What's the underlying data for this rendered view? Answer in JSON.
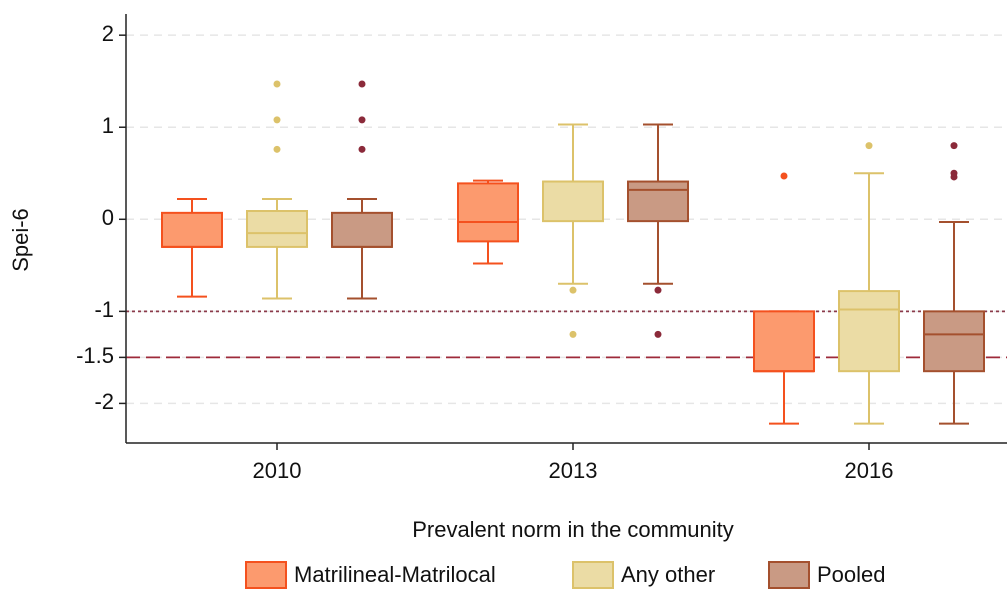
{
  "chart_data": {
    "type": "box",
    "y_label": "Spei-6",
    "legend_title": "Prevalent norm in the community",
    "categories": [
      "2010",
      "2013",
      "2016"
    ],
    "ylim": [
      -2.43,
      2.23
    ],
    "yticks": [
      2,
      1,
      0,
      -1,
      -1.5,
      -2
    ],
    "grid": true,
    "reference_lines": [
      {
        "value": -1,
        "color": "#8b3a4a",
        "style": "dotted"
      },
      {
        "value": -1.5,
        "color": "#9e2a3a",
        "style": "dashed"
      }
    ],
    "series": [
      {
        "name": "Matrilineal-Matrilocal",
        "color": "#fc9a6e",
        "edge_color": "#f4511e",
        "whislo": [
          -0.84,
          -0.48,
          -2.22
        ],
        "q1": [
          -0.3,
          -0.24,
          -1.65
        ],
        "median": [
          -0.3,
          -0.03,
          -1.65
        ],
        "q3": [
          0.07,
          0.39,
          -1.0
        ],
        "whishi": [
          0.22,
          0.42,
          -1.0
        ],
        "outliers": [
          [],
          [],
          [
            0.47
          ]
        ]
      },
      {
        "name": "Any other",
        "color": "#ebdca5",
        "edge_color": "#dcc26a",
        "whislo": [
          -0.86,
          -0.7,
          -2.22
        ],
        "q1": [
          -0.3,
          -0.02,
          -1.65
        ],
        "median": [
          -0.15,
          0.41,
          -0.98
        ],
        "q3": [
          0.09,
          0.41,
          -0.78
        ],
        "whishi": [
          0.22,
          1.03,
          0.5
        ],
        "outliers": [
          [
            0.76,
            1.08,
            1.47
          ],
          [
            -0.77,
            -1.25
          ],
          [
            0.8
          ]
        ]
      },
      {
        "name": "Pooled",
        "color": "#c99a84",
        "edge_color": "#a4502e",
        "outlier_color": "#8b2a3a",
        "whislo": [
          -0.86,
          -0.7,
          -2.22
        ],
        "q1": [
          -0.3,
          -0.02,
          -1.65
        ],
        "median": [
          -0.3,
          0.32,
          -1.25
        ],
        "q3": [
          0.07,
          0.41,
          -1.0
        ],
        "whishi": [
          0.22,
          1.03,
          -0.03
        ],
        "outliers": [
          [
            0.76,
            1.08,
            1.47
          ],
          [
            -0.77,
            -1.25
          ],
          [
            0.46,
            0.5,
            0.8
          ]
        ]
      }
    ]
  }
}
